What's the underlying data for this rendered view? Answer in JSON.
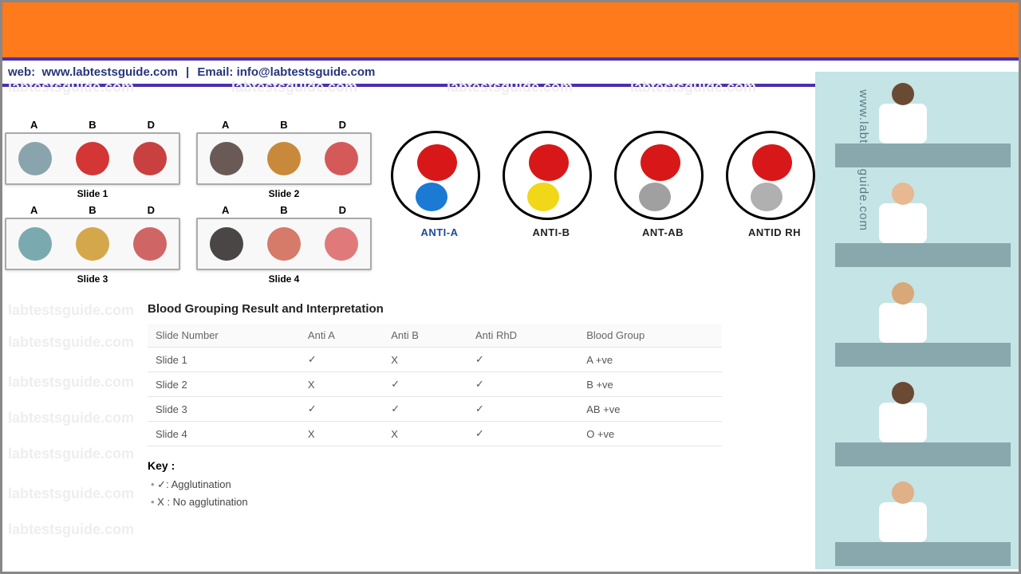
{
  "header": {
    "web_label": "web:",
    "web_url": "www.labtestsguide.com",
    "email_label": "Email:",
    "email": "info@labtestsguide.com"
  },
  "colors": {
    "orange": "#ff7a1a",
    "purple": "#4b2fae",
    "header_text": "#27357a",
    "panel_bg": "#c4e4e6",
    "bench": "#88a8ad",
    "watermark": "#eeeeee"
  },
  "watermark_text": "labtestsguide.com",
  "slides": [
    {
      "caption": "Slide 1",
      "labels": [
        "A",
        "B",
        "D"
      ],
      "spots": [
        "#8aa4ad",
        "#d43535",
        "#c84040"
      ]
    },
    {
      "caption": "Slide 2",
      "labels": [
        "A",
        "B",
        "D"
      ],
      "spots": [
        "#6a5a56",
        "#c88a3a",
        "#d45a5a"
      ]
    },
    {
      "caption": "Slide 3",
      "labels": [
        "A",
        "B",
        "D"
      ],
      "spots": [
        "#7aaab0",
        "#d4a84a",
        "#d06565"
      ]
    },
    {
      "caption": "Slide 4",
      "labels": [
        "A",
        "B",
        "D"
      ],
      "spots": [
        "#4a4646",
        "#d67a6a",
        "#e07a7a"
      ]
    }
  ],
  "circles": [
    {
      "label": "ANTI-A",
      "label_color": "#1a4a9a",
      "top": "#d81818",
      "bot": "#1a7ad4"
    },
    {
      "label": "ANTI-B",
      "label_color": "#222",
      "top": "#d81818",
      "bot": "#f0d818"
    },
    {
      "label": "ANT-AB",
      "label_color": "#222",
      "top": "#d81818",
      "bot": "#a0a0a0"
    },
    {
      "label": "ANTID RH",
      "label_color": "#222",
      "top": "#d81818",
      "bot": "#b0b0b0"
    }
  ],
  "table": {
    "title": "Blood Grouping Result and Interpretation",
    "columns": [
      "Slide Number",
      "Anti A",
      "Anti B",
      "Anti RhD",
      "Blood Group"
    ],
    "rows": [
      [
        "Slide 1",
        "✓",
        "X",
        "✓",
        "A +ve"
      ],
      [
        "Slide 2",
        "X",
        "✓",
        "✓",
        "B +ve"
      ],
      [
        "Slide 3",
        "✓",
        "✓",
        "✓",
        "AB +ve"
      ],
      [
        "Slide 4",
        "X",
        "X",
        "✓",
        "O +ve"
      ]
    ]
  },
  "key": {
    "title": "Key :",
    "items": [
      "✓: Agglutination",
      "X : No agglutination"
    ]
  },
  "right_text": "www.labtestsguide.com",
  "people_skin": [
    "#6b4a34",
    "#e8b890",
    "#d8a878",
    "#6b4a34",
    "#e0b088"
  ]
}
